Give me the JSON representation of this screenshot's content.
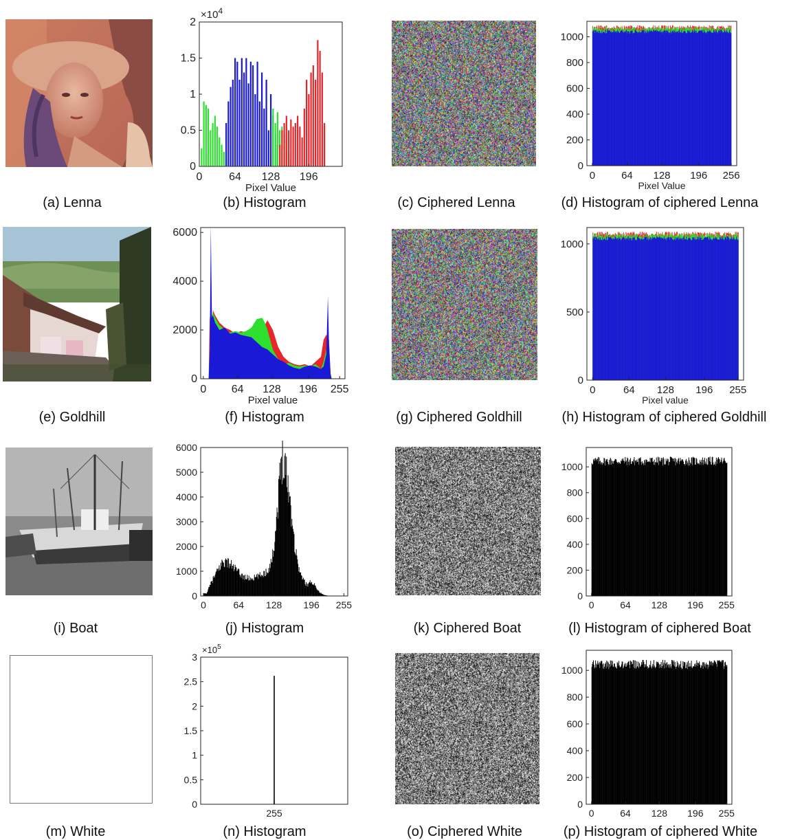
{
  "figure": {
    "rows": [
      {
        "image": {
          "caption": "(a) Lenna",
          "kind": "lenna"
        },
        "histogram": {
          "caption": "(b) Histogram"
        },
        "cipher": {
          "caption": "(c) Ciphered Lenna",
          "mode": "color"
        },
        "cipher_hist": {
          "caption": "(d) Histogram of ciphered Lenna"
        }
      },
      {
        "image": {
          "caption": "(e) Goldhill",
          "kind": "goldhill"
        },
        "histogram": {
          "caption": "(f) Histogram"
        },
        "cipher": {
          "caption": "(g) Ciphered Goldhill",
          "mode": "color"
        },
        "cipher_hist": {
          "caption": "(h) Histogram of ciphered Goldhill"
        }
      },
      {
        "image": {
          "caption": "(i) Boat",
          "kind": "boat"
        },
        "histogram": {
          "caption": "(j) Histogram"
        },
        "cipher": {
          "caption": "(k) Ciphered Boat",
          "mode": "gray"
        },
        "cipher_hist": {
          "caption": "(l) Histogram of ciphered Boat"
        }
      },
      {
        "image": {
          "caption": "(m) White",
          "kind": "white"
        },
        "histogram": {
          "caption": "(n) Histogram"
        },
        "cipher": {
          "caption": "(o) Ciphered White",
          "mode": "gray"
        },
        "cipher_hist": {
          "caption": "(p) Histogram of ciphered White"
        }
      }
    ]
  },
  "chart_data": [
    {
      "id": "b",
      "type": "bar",
      "xlabel": "Pixel Value",
      "ylabel": "",
      "xticks": [
        "0",
        "64",
        "128",
        "196"
      ],
      "xtick_values": [
        0,
        64,
        128,
        196
      ],
      "xlim": [
        0,
        256
      ],
      "yticks": [
        "0",
        "0.5",
        "1",
        "1.5",
        "2"
      ],
      "ytick_values": [
        0,
        0.5,
        1,
        1.5,
        2
      ],
      "ylim": [
        0,
        2
      ],
      "exponent": "×10",
      "exponent_power": "4",
      "colors": {
        "red": "#e8262a",
        "green": "#2ee02e",
        "blue": "#1a1ad6"
      },
      "series": [
        {
          "color": "green",
          "x": [
            4,
            8,
            12,
            16,
            20,
            24,
            28,
            32,
            36,
            40,
            44,
            48
          ],
          "values": [
            0.25,
            0.9,
            0.85,
            0.8,
            0.5,
            0.6,
            0.7,
            0.55,
            0.4,
            0.3,
            0.2,
            0.15
          ]
        },
        {
          "color": "blue",
          "x": [
            48,
            52,
            56,
            60,
            64,
            68,
            72,
            76,
            80,
            84,
            88,
            92,
            96,
            100,
            104,
            108,
            112,
            116,
            120,
            124,
            128,
            132,
            136,
            140
          ],
          "values": [
            0.6,
            0.9,
            1.1,
            1.2,
            1.5,
            1.45,
            1.2,
            1.5,
            1.3,
            1.5,
            1.15,
            1.45,
            1.4,
            1.0,
            1.45,
            0.9,
            1.3,
            0.8,
            1.2,
            0.5,
            1.0,
            0.7,
            0.45,
            0.3
          ]
        },
        {
          "color": "green",
          "x": [
            132,
            136,
            140,
            144,
            148,
            152,
            156,
            160,
            164
          ],
          "values": [
            0.8,
            0.6,
            0.75,
            0.5,
            0.55,
            0.45,
            0.35,
            0.2,
            0.1
          ]
        },
        {
          "color": "red",
          "x": [
            144,
            148,
            152,
            156,
            160,
            164,
            168,
            172,
            176,
            180,
            184,
            188,
            192,
            196,
            200,
            204,
            208,
            212,
            216,
            220,
            224
          ],
          "values": [
            0.3,
            0.5,
            0.6,
            0.7,
            0.5,
            0.65,
            0.55,
            0.6,
            0.7,
            0.55,
            0.4,
            0.8,
            1.2,
            1.0,
            1.3,
            1.4,
            1.2,
            1.75,
            1.6,
            1.3,
            0.6
          ]
        }
      ]
    },
    {
      "id": "d",
      "type": "bar",
      "xlabel": "Pixel Value",
      "ylabel": "",
      "xticks": [
        "0",
        "64",
        "128",
        "196",
        "256"
      ],
      "xtick_values": [
        0,
        64,
        128,
        196,
        256
      ],
      "xlim": [
        -10,
        266
      ],
      "yticks": [
        "0",
        "200",
        "400",
        "600",
        "800",
        "1000"
      ],
      "ytick_values": [
        0,
        200,
        400,
        600,
        800,
        1000
      ],
      "ylim": [
        0,
        1120
      ],
      "series": [
        {
          "name": "",
          "color": "red",
          "level": 1070,
          "spread": 40
        },
        {
          "name": "",
          "color": "green",
          "level": 1060,
          "spread": 40
        },
        {
          "name": "",
          "color": "blue",
          "level": 1040,
          "spread": 30
        }
      ]
    },
    {
      "id": "f",
      "type": "area",
      "xlabel": "Pixel value",
      "ylabel": "",
      "xticks": [
        "0",
        "64",
        "128",
        "196",
        "255"
      ],
      "xtick_values": [
        0,
        64,
        128,
        196,
        255
      ],
      "xlim": [
        -5,
        265
      ],
      "yticks": [
        "0",
        "2000",
        "4000",
        "6000"
      ],
      "ytick_values": [
        0,
        2000,
        4000,
        6000
      ],
      "ylim": [
        0,
        6200
      ],
      "series": [
        {
          "color": "red",
          "x": [
            10,
            12,
            14,
            18,
            22,
            30,
            40,
            50,
            60,
            70,
            80,
            90,
            100,
            110,
            115,
            120,
            130,
            140,
            150,
            160,
            170,
            180,
            190,
            200,
            210,
            220,
            225,
            230,
            235,
            238,
            240
          ],
          "values": [
            0,
            2600,
            1800,
            2800,
            2600,
            2300,
            2100,
            2000,
            1850,
            1950,
            1900,
            1900,
            1800,
            1800,
            2200,
            2400,
            2000,
            1300,
            900,
            700,
            600,
            550,
            600,
            500,
            700,
            900,
            1600,
            1800,
            1600,
            200,
            0
          ]
        },
        {
          "color": "green",
          "x": [
            10,
            14,
            18,
            22,
            30,
            40,
            50,
            60,
            70,
            80,
            90,
            100,
            110,
            115,
            120,
            130,
            140,
            150,
            160,
            170,
            180,
            190,
            200,
            210,
            220,
            225,
            230,
            235,
            238,
            240
          ],
          "values": [
            0,
            2500,
            2700,
            2500,
            2200,
            2000,
            1900,
            1950,
            1900,
            1950,
            2100,
            2450,
            2500,
            2300,
            2000,
            1200,
            800,
            600,
            650,
            550,
            500,
            550,
            500,
            600,
            400,
            700,
            1200,
            1100,
            200,
            0
          ]
        },
        {
          "color": "blue",
          "x": [
            10,
            12,
            14,
            16,
            18,
            22,
            30,
            40,
            50,
            60,
            70,
            80,
            90,
            100,
            110,
            120,
            130,
            140,
            150,
            160,
            170,
            180,
            190,
            200,
            210,
            220,
            225,
            230,
            233,
            235,
            238,
            240
          ],
          "values": [
            0,
            1200,
            6300,
            2500,
            2600,
            2300,
            2000,
            2100,
            1850,
            1900,
            1800,
            1750,
            1700,
            1500,
            1300,
            1200,
            1000,
            800,
            700,
            550,
            450,
            400,
            500,
            550,
            500,
            400,
            500,
            1000,
            3400,
            1500,
            200,
            0
          ]
        }
      ]
    },
    {
      "id": "h",
      "type": "bar",
      "xlabel": "Pixel value",
      "ylabel": "",
      "xticks": [
        "0",
        "64",
        "128",
        "196",
        "255"
      ],
      "xtick_values": [
        0,
        64,
        128,
        196,
        255
      ],
      "xlim": [
        -10,
        265
      ],
      "yticks": [
        "0",
        "500",
        "1000"
      ],
      "ytick_values": [
        0,
        500,
        1000
      ],
      "ylim": [
        0,
        1120
      ],
      "series": [
        {
          "name": "",
          "color": "red",
          "level": 1070,
          "spread": 40
        },
        {
          "name": "",
          "color": "green",
          "level": 1060,
          "spread": 40
        },
        {
          "name": "",
          "color": "blue",
          "level": 1040,
          "spread": 30
        }
      ]
    },
    {
      "id": "j",
      "type": "bar",
      "xlabel": "",
      "ylabel": "",
      "xticks": [
        "0",
        "64",
        "128",
        "196",
        "255"
      ],
      "xtick_values": [
        0,
        64,
        128,
        196,
        255
      ],
      "xlim": [
        -5,
        262
      ],
      "yticks": [
        "0",
        "1000",
        "2000",
        "3000",
        "4000",
        "5000",
        "6000"
      ],
      "ytick_values": [
        0,
        1000,
        2000,
        3000,
        4000,
        5000,
        6000
      ],
      "ylim": [
        0,
        6000
      ],
      "color": "#000000",
      "x": [
        5,
        15,
        25,
        35,
        45,
        55,
        65,
        75,
        85,
        95,
        105,
        115,
        120,
        125,
        130,
        135,
        140,
        145,
        150,
        155,
        160,
        165,
        170,
        175,
        180,
        185,
        190,
        195,
        200,
        205,
        210,
        215,
        220,
        225
      ],
      "values": [
        100,
        600,
        1000,
        1400,
        1350,
        1150,
        900,
        750,
        700,
        750,
        850,
        1000,
        1200,
        1600,
        2600,
        3800,
        5300,
        5800,
        5000,
        4200,
        3200,
        2100,
        1400,
        900,
        700,
        500,
        450,
        600,
        500,
        300,
        150,
        80,
        40,
        10
      ]
    },
    {
      "id": "l",
      "type": "bar",
      "xlabel": "",
      "ylabel": "",
      "xticks": [
        "0",
        "64",
        "128",
        "196",
        "255"
      ],
      "xtick_values": [
        0,
        64,
        128,
        196,
        255
      ],
      "xlim": [
        -10,
        265
      ],
      "yticks": [
        "0",
        "200",
        "400",
        "600",
        "800",
        "1000"
      ],
      "ytick_values": [
        0,
        200,
        400,
        600,
        800,
        1000
      ],
      "ylim": [
        0,
        1150
      ],
      "color": "#000000",
      "level": 1030,
      "spread": 70
    },
    {
      "id": "n",
      "type": "bar",
      "xlabel": "",
      "ylabel": "",
      "xticks": [
        "255"
      ],
      "xtick_values": [
        255
      ],
      "xlim": [
        0,
        510
      ],
      "yticks": [
        "0",
        "0.5",
        "1",
        "1.5",
        "2",
        "2.5",
        "3"
      ],
      "ytick_values": [
        0,
        0.5,
        1,
        1.5,
        2,
        2.5,
        3
      ],
      "ylim": [
        0,
        3
      ],
      "exponent": "×10",
      "exponent_power": "5",
      "color": "#333333",
      "x": [
        255
      ],
      "values": [
        2.62
      ]
    },
    {
      "id": "p",
      "type": "bar",
      "xlabel": "",
      "ylabel": "",
      "xticks": [
        "0",
        "64",
        "128",
        "196",
        "255"
      ],
      "xtick_values": [
        0,
        64,
        128,
        196,
        255
      ],
      "xlim": [
        -10,
        265
      ],
      "yticks": [
        "0",
        "200",
        "400",
        "600",
        "800",
        "1000"
      ],
      "ytick_values": [
        0,
        200,
        400,
        600,
        800,
        1000
      ],
      "ylim": [
        0,
        1150
      ],
      "color": "#000000",
      "level": 1030,
      "spread": 70
    }
  ]
}
